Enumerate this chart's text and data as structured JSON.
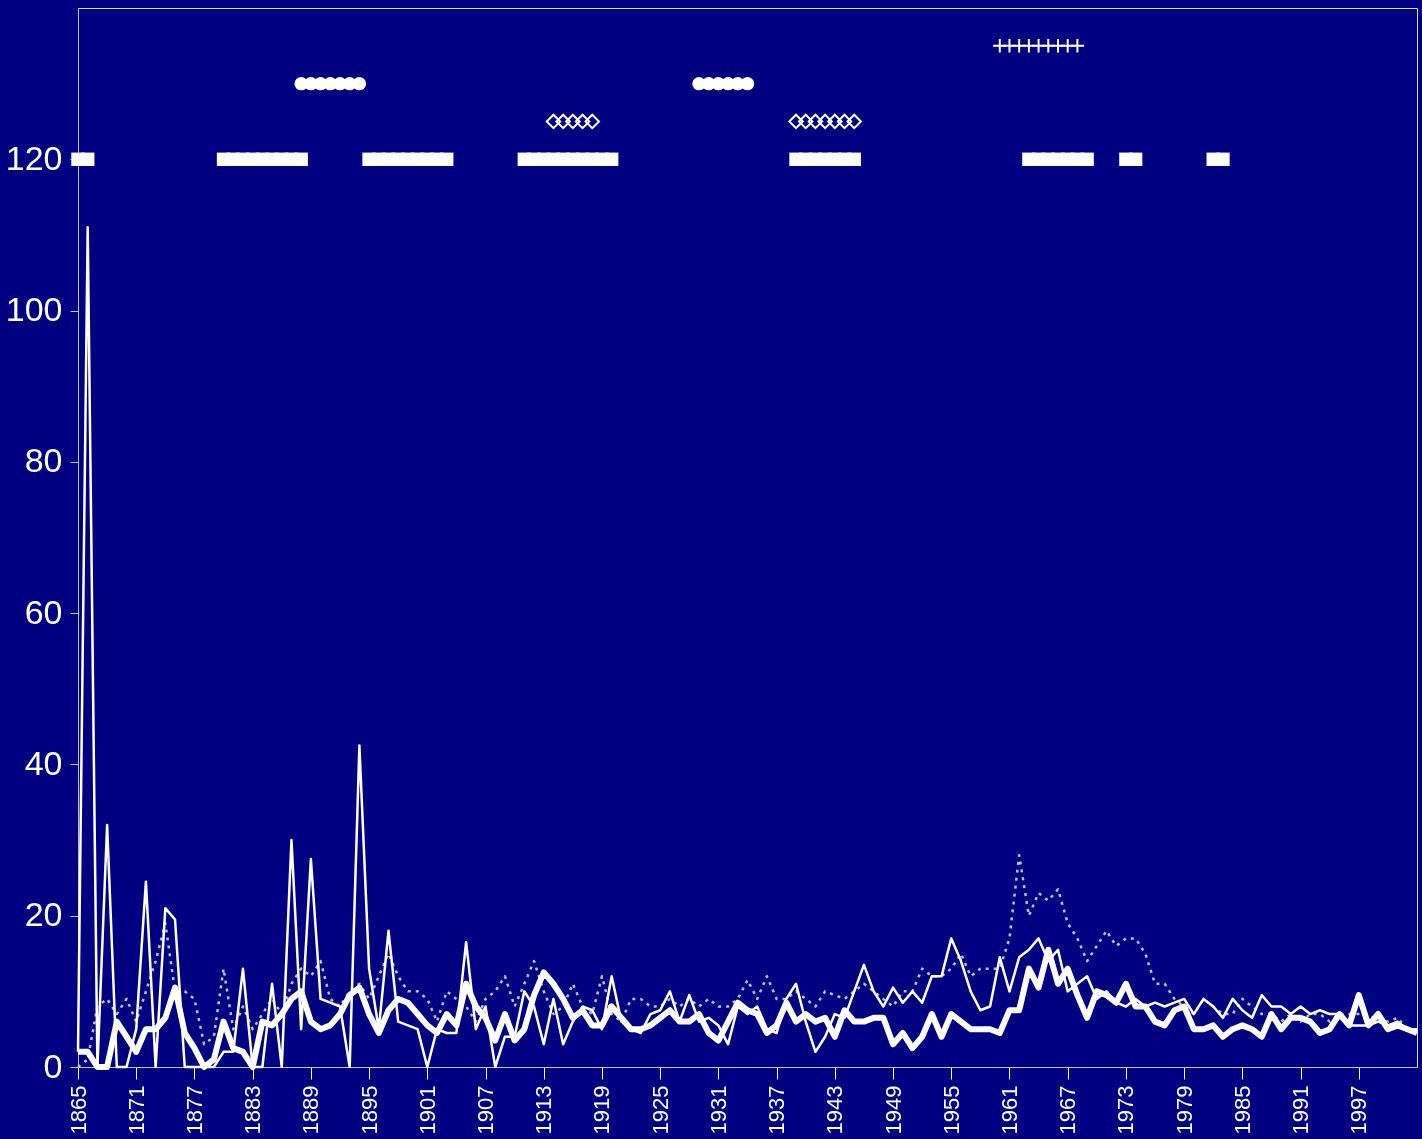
{
  "chart_data": {
    "type": "line",
    "x": [
      1865,
      1866,
      1867,
      1868,
      1869,
      1870,
      1871,
      1872,
      1873,
      1874,
      1875,
      1876,
      1877,
      1878,
      1879,
      1880,
      1881,
      1882,
      1883,
      1884,
      1885,
      1886,
      1887,
      1888,
      1889,
      1890,
      1891,
      1892,
      1893,
      1894,
      1895,
      1896,
      1897,
      1898,
      1899,
      1900,
      1901,
      1902,
      1903,
      1904,
      1905,
      1906,
      1907,
      1908,
      1909,
      1910,
      1911,
      1912,
      1913,
      1914,
      1915,
      1916,
      1917,
      1918,
      1919,
      1920,
      1921,
      1922,
      1923,
      1924,
      1925,
      1926,
      1927,
      1928,
      1929,
      1930,
      1931,
      1932,
      1933,
      1934,
      1935,
      1936,
      1937,
      1938,
      1939,
      1940,
      1941,
      1942,
      1943,
      1944,
      1945,
      1946,
      1947,
      1948,
      1949,
      1950,
      1951,
      1952,
      1953,
      1954,
      1955,
      1956,
      1957,
      1958,
      1959,
      1960,
      1961,
      1962,
      1963,
      1964,
      1965,
      1966,
      1967,
      1968,
      1969,
      1970,
      1971,
      1972,
      1973,
      1974,
      1975,
      1976,
      1977,
      1978,
      1979,
      1980,
      1981,
      1982,
      1983,
      1984,
      1985,
      1986,
      1987,
      1988,
      1989,
      1990,
      1991,
      1992,
      1993,
      1994,
      1995,
      1996,
      1997,
      1998,
      1999,
      2000,
      2001,
      2002,
      2003
    ],
    "series": [
      {
        "color": "#c0c0c0",
        "line_style": "dotted",
        "values": [
          0,
          1,
          8,
          9,
          7,
          9,
          6,
          10,
          14,
          19,
          10,
          10,
          9,
          3,
          4,
          13,
          5,
          8,
          5,
          7,
          9,
          7,
          11,
          13,
          12,
          14,
          9,
          8,
          10,
          11,
          9,
          12,
          15,
          12,
          10,
          10,
          9,
          6,
          10,
          9,
          8,
          6,
          9,
          10,
          12,
          8,
          11,
          14,
          10,
          7,
          8,
          11,
          8,
          7,
          12,
          7,
          6,
          9,
          9,
          8,
          8,
          9,
          8,
          9,
          8,
          9,
          8,
          8,
          9,
          11.5,
          9,
          12,
          9,
          9,
          10,
          9,
          8,
          10,
          9.5,
          9,
          10,
          11,
          10,
          9,
          8,
          10,
          10,
          13,
          12,
          12,
          13,
          15,
          12,
          13,
          13,
          13,
          17,
          28,
          20,
          23,
          22,
          23.5,
          19,
          17,
          14,
          16,
          18,
          16,
          17,
          17,
          15,
          11,
          11,
          9,
          8,
          7,
          9,
          8,
          7,
          7,
          9,
          8,
          7,
          7,
          6,
          7,
          6,
          7,
          7,
          6,
          7,
          7,
          7,
          7,
          6,
          6,
          6.5,
          5,
          5
        ]
      },
      {
        "color": "#ffffff",
        "line_style": "solid",
        "values": [
          2,
          111,
          0,
          32,
          0,
          0,
          5,
          24.5,
          0,
          21,
          19.5,
          0,
          0,
          0,
          0,
          2,
          2,
          13,
          0,
          0,
          11,
          0,
          30,
          5,
          27.5,
          9,
          8.5,
          8,
          0,
          42.5,
          13,
          5,
          18,
          6,
          5.5,
          5,
          0,
          5,
          4.5,
          4.5,
          16.5,
          5,
          8,
          0,
          4,
          4,
          10,
          8,
          3,
          9,
          3,
          6,
          8,
          7.5,
          5,
          12,
          6,
          5,
          4.5,
          7,
          7.5,
          10,
          6,
          9.5,
          6,
          6.5,
          5.5,
          3,
          8,
          7,
          8,
          5,
          4.5,
          9,
          11,
          6,
          2,
          4,
          7,
          6.5,
          10,
          13.5,
          10,
          8,
          10.5,
          8.5,
          10,
          8.5,
          12,
          12,
          17,
          14,
          10,
          7.5,
          8,
          14.5,
          10,
          14.5,
          15.5,
          17,
          14,
          15.5,
          10,
          11,
          12,
          9,
          10,
          8.5,
          8,
          9,
          8,
          8.5,
          8,
          8.5,
          9,
          7,
          9,
          8,
          6.5,
          9,
          7.5,
          6.5,
          9.5,
          8,
          8,
          7,
          8,
          7,
          7.5,
          7,
          7,
          5.5,
          5.5,
          5.5,
          6,
          5.5,
          6,
          5,
          5
        ]
      },
      {
        "color": "#ffffff",
        "line_style": "solid",
        "values": [
          2,
          2,
          0,
          0,
          6,
          4,
          2,
          5,
          5,
          6.5,
          10.5,
          4.5,
          2.5,
          0,
          1,
          6,
          2.5,
          2,
          0,
          6,
          5.5,
          7,
          9,
          10,
          6,
          5,
          5.5,
          7,
          9.5,
          10.5,
          7,
          4.5,
          7.5,
          9,
          8.5,
          7,
          5.5,
          4.5,
          7,
          5.5,
          11,
          8,
          6.5,
          3.5,
          7,
          3.5,
          5,
          9.5,
          12.5,
          11,
          9,
          6.5,
          7.5,
          5.5,
          5.5,
          8,
          6.5,
          5,
          5,
          5.5,
          6.5,
          7.5,
          6,
          6,
          7,
          4.5,
          3.5,
          6,
          8.5,
          7.5,
          7,
          4.5,
          5.5,
          8.5,
          6,
          7,
          6,
          6.5,
          4,
          7.5,
          6,
          6,
          6.5,
          6.5,
          3,
          4.5,
          2.5,
          4,
          7,
          4,
          7,
          6,
          5,
          5,
          5,
          4.5,
          7.5,
          7.5,
          13,
          10.5,
          15.5,
          11,
          13,
          9.5,
          6.5,
          10,
          9.5,
          8.5,
          11,
          8,
          8,
          6,
          5.5,
          7.5,
          8,
          5,
          5,
          5.5,
          4,
          5,
          5.5,
          5,
          4,
          7,
          5,
          6.5,
          6.5,
          6,
          4.5,
          5,
          7,
          5.5,
          9.5,
          5.5,
          7,
          5,
          5.5,
          5,
          4.5
        ]
      },
      {
        "type": "scatter",
        "marker": "square",
        "color": "#ffffff",
        "x": [
          1865,
          1866,
          1880,
          1881,
          1882,
          1883,
          1884,
          1885,
          1886,
          1887,
          1888,
          1895,
          1896,
          1897,
          1898,
          1899,
          1900,
          1901,
          1902,
          1903,
          1911,
          1912,
          1913,
          1914,
          1915,
          1916,
          1917,
          1918,
          1919,
          1920,
          1939,
          1940,
          1941,
          1942,
          1943,
          1944,
          1945,
          1963,
          1964,
          1965,
          1966,
          1967,
          1968,
          1969,
          1973,
          1974,
          1982,
          1983
        ],
        "values": [
          120,
          120,
          120,
          120,
          120,
          120,
          120,
          120,
          120,
          120,
          120,
          120,
          120,
          120,
          120,
          120,
          120,
          120,
          120,
          120,
          120,
          120,
          120,
          120,
          120,
          120,
          120,
          120,
          120,
          120,
          120,
          120,
          120,
          120,
          120,
          120,
          120,
          120,
          120,
          120,
          120,
          120,
          120,
          120,
          120,
          120,
          120,
          120
        ]
      },
      {
        "type": "scatter",
        "marker": "diamond",
        "color": "#ffffff",
        "x": [
          1914,
          1915,
          1916,
          1917,
          1918,
          1939,
          1940,
          1941,
          1942,
          1943,
          1944,
          1945
        ],
        "values": [
          125,
          125,
          125,
          125,
          125,
          125,
          125,
          125,
          125,
          125,
          125,
          125
        ]
      },
      {
        "type": "scatter",
        "marker": "circle",
        "color": "#ffffff",
        "x": [
          1888,
          1889,
          1890,
          1891,
          1892,
          1893,
          1894,
          1929,
          1930,
          1931,
          1932,
          1933,
          1934
        ],
        "values": [
          130,
          130,
          130,
          130,
          130,
          130,
          130,
          130,
          130,
          130,
          130,
          130,
          130
        ]
      },
      {
        "type": "scatter",
        "marker": "cross",
        "color": "#ffffff",
        "x": [
          1960,
          1961,
          1962,
          1963,
          1964,
          1965,
          1966,
          1967,
          1968
        ],
        "values": [
          135,
          135,
          135,
          135,
          135,
          135,
          135,
          135,
          135
        ]
      }
    ],
    "xlim": [
      1865,
      2003
    ],
    "xticks": [
      1865,
      1871,
      1877,
      1883,
      1889,
      1895,
      1901,
      1907,
      1913,
      1919,
      1925,
      1931,
      1937,
      1943,
      1949,
      1955,
      1961,
      1967,
      1973,
      1979,
      1985,
      1991,
      1997
    ],
    "ylim": [
      0,
      140
    ],
    "yticks": [
      0,
      20,
      40,
      60,
      80,
      100,
      120
    ],
    "grid": false,
    "marker": "none"
  }
}
